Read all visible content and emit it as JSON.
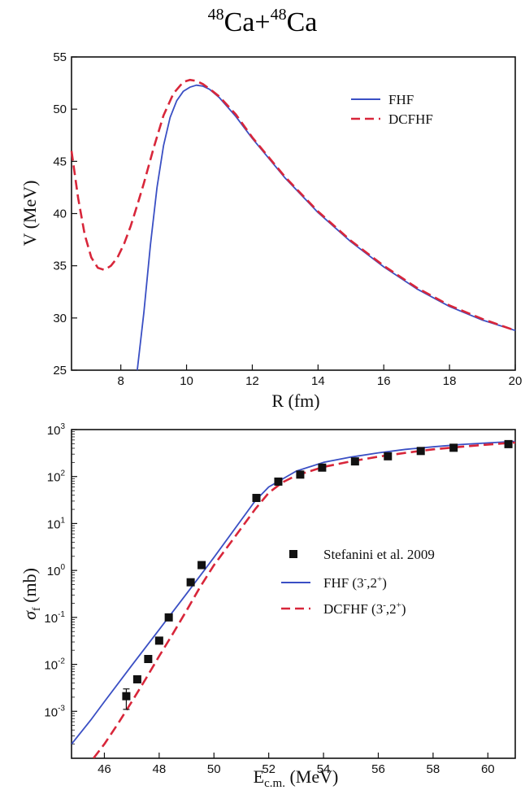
{
  "title": {
    "part1_sup": "48",
    "part1": "Ca+",
    "part2_sup": "48",
    "part2": "Ca"
  },
  "colors": {
    "fhf": "#3a4fc4",
    "dcfhf": "#d8263a",
    "data": "#111111"
  },
  "chart_data": [
    {
      "type": "line",
      "xlabel": "R (fm)",
      "ylabel": "V (MeV)",
      "xlim": [
        6.5,
        20
      ],
      "ylim": [
        25,
        55
      ],
      "xticks": [
        8,
        10,
        12,
        14,
        16,
        18,
        20
      ],
      "yticks": [
        25,
        30,
        35,
        40,
        45,
        50,
        55
      ],
      "grid": false,
      "legend_position": "top-right",
      "series": [
        {
          "name": "FHF",
          "style": "solid",
          "x": [
            8.5,
            8.7,
            8.9,
            9.1,
            9.3,
            9.5,
            9.7,
            9.9,
            10.1,
            10.3,
            10.5,
            10.7,
            11.0,
            11.5,
            12.0,
            13.0,
            14.0,
            15.0,
            16.0,
            17.0,
            18.0,
            19.0,
            20.0
          ],
          "y": [
            25.0,
            30.5,
            37.0,
            42.5,
            46.5,
            49.2,
            50.8,
            51.7,
            52.1,
            52.3,
            52.2,
            51.9,
            51.1,
            49.3,
            47.2,
            43.4,
            40.1,
            37.3,
            34.9,
            32.8,
            31.1,
            29.8,
            28.8
          ]
        },
        {
          "name": "DCFHF",
          "style": "dashed",
          "x": [
            6.5,
            6.7,
            6.9,
            7.1,
            7.3,
            7.5,
            7.7,
            7.9,
            8.1,
            8.3,
            8.5,
            8.7,
            9.0,
            9.3,
            9.6,
            9.9,
            10.1,
            10.3,
            10.5,
            10.8,
            11.0,
            11.5,
            12.0,
            13.0,
            14.0,
            15.0,
            16.0,
            17.0,
            18.0,
            19.0,
            20.0
          ],
          "y": [
            46.0,
            41.5,
            38.0,
            35.8,
            34.8,
            34.6,
            35.0,
            35.8,
            37.1,
            38.8,
            40.8,
            42.9,
            46.3,
            49.4,
            51.5,
            52.6,
            52.8,
            52.7,
            52.4,
            51.7,
            51.2,
            49.5,
            47.3,
            43.5,
            40.2,
            37.4,
            35.0,
            32.9,
            31.2,
            29.9,
            28.8
          ]
        }
      ]
    },
    {
      "type": "line",
      "xlabel": "E c.m. (MeV)",
      "xlabel_main": "E",
      "xlabel_sub": "c.m.",
      "xlabel_rest": " (MeV)",
      "ylabel": "σf (mb)",
      "ylabel_sigma": "σ",
      "ylabel_sub": "f",
      "ylabel_rest": " (mb)",
      "xlim": [
        44.8,
        61
      ],
      "ylim": [
        0.0001,
        1000
      ],
      "yscale": "log",
      "xticks": [
        46,
        48,
        50,
        52,
        54,
        56,
        58,
        60
      ],
      "yticks": [
        {
          "base": "10",
          "exp": "-3",
          "value": 0.001
        },
        {
          "base": "10",
          "exp": "-2",
          "value": 0.01
        },
        {
          "base": "10",
          "exp": "-1",
          "value": 0.1
        },
        {
          "base": "10",
          "exp": "0",
          "value": 1
        },
        {
          "base": "10",
          "exp": "1",
          "value": 10
        },
        {
          "base": "10",
          "exp": "2",
          "value": 100
        },
        {
          "base": "10",
          "exp": "3",
          "value": 1000
        }
      ],
      "grid": false,
      "legend_position": "center-right",
      "legend": [
        {
          "kind": "marker",
          "label": "Stefanini et al. 2009"
        },
        {
          "kind": "solid",
          "label": "FHF (3",
          "sup1": "-",
          "mid": ",2",
          "sup2": "+",
          "end": ")"
        },
        {
          "kind": "dashed",
          "label": "DCFHF (3",
          "sup1": "-",
          "mid": ",2",
          "sup2": "+",
          "end": ")"
        }
      ],
      "series": [
        {
          "name": "Stefanini et al. 2009",
          "style": "markers",
          "x": [
            46.8,
            47.2,
            47.6,
            48.0,
            48.35,
            49.15,
            49.55,
            51.55,
            52.35,
            53.15,
            53.95,
            55.15,
            56.35,
            57.55,
            58.75,
            60.75
          ],
          "y": [
            0.0021,
            0.0048,
            0.013,
            0.032,
            0.1,
            0.56,
            1.3,
            35,
            78,
            110,
            155,
            210,
            270,
            350,
            410,
            490
          ],
          "yerr_low": [
            0.0011,
            0,
            0,
            0,
            0,
            0,
            0,
            0,
            0,
            0,
            0,
            0,
            0,
            0,
            0,
            0
          ],
          "yerr_high": [
            0.003,
            0,
            0,
            0,
            0,
            0,
            0,
            0,
            0,
            0,
            0,
            0,
            0,
            0,
            0,
            0
          ]
        },
        {
          "name": "FHF (3-,2+)",
          "style": "solid",
          "x": [
            44.8,
            45.5,
            46.0,
            47.0,
            48.0,
            49.0,
            50.0,
            51.0,
            51.5,
            52.0,
            53.0,
            54.0,
            55.0,
            56.0,
            57.0,
            58.0,
            59.0,
            60.0,
            61.0
          ],
          "y": [
            0.0002,
            0.00065,
            0.0016,
            0.0095,
            0.055,
            0.32,
            1.9,
            12,
            30,
            60,
            130,
            200,
            260,
            320,
            380,
            430,
            480,
            520,
            560
          ]
        },
        {
          "name": "DCFHF (3-,2+)",
          "style": "dashed",
          "x": [
            45.6,
            46.0,
            46.5,
            47.0,
            47.5,
            48.0,
            48.5,
            49.0,
            49.5,
            50.0,
            51.0,
            51.5,
            52.0,
            52.5,
            53.0,
            54.0,
            55.0,
            56.0,
            57.0,
            58.0,
            59.0,
            60.0,
            61.0
          ],
          "y": [
            0.0001,
            0.0002,
            0.00055,
            0.0016,
            0.0048,
            0.015,
            0.045,
            0.14,
            0.45,
            1.3,
            8,
            20,
            45,
            75,
            105,
            160,
            210,
            265,
            320,
            380,
            430,
            480,
            530
          ]
        }
      ]
    }
  ]
}
